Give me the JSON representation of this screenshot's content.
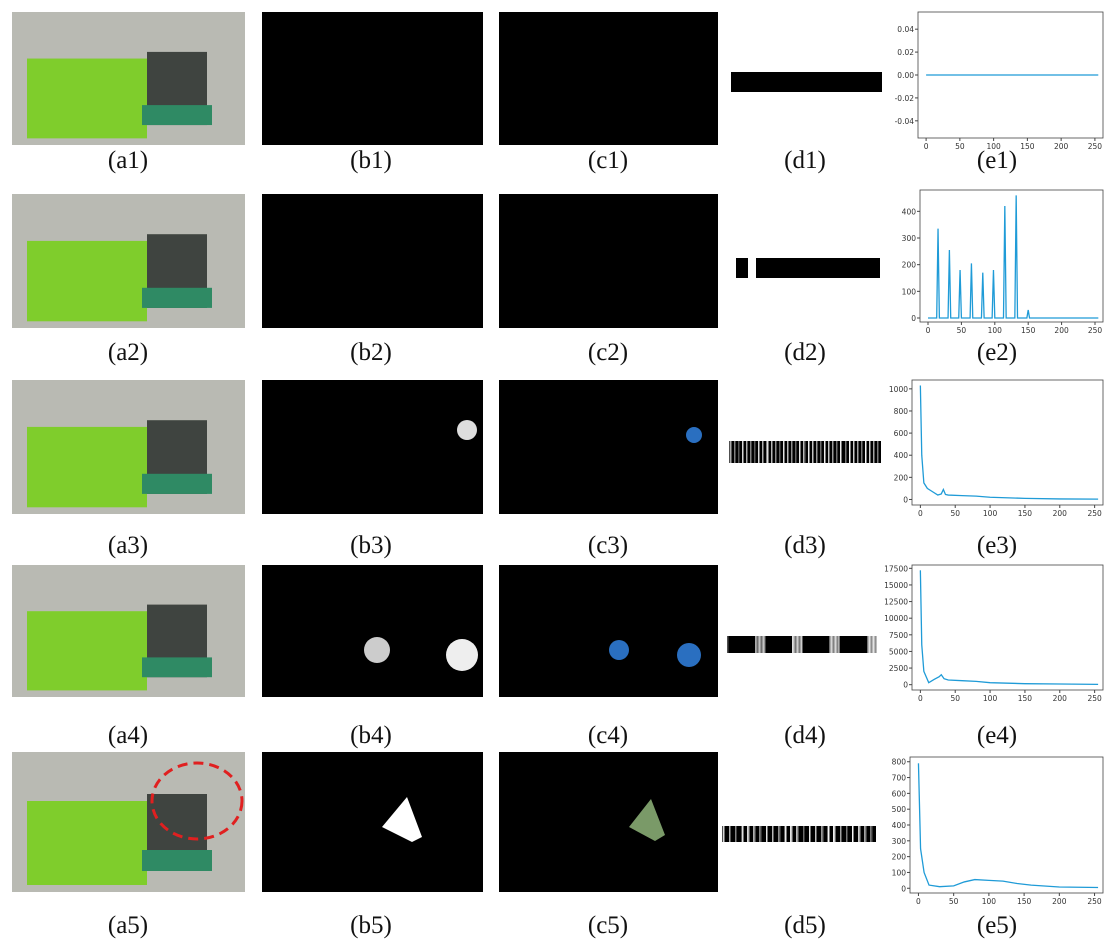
{
  "rows": [
    [
      "(a1)",
      "(b1)",
      "(c1)",
      "(d1)",
      "(e1)"
    ],
    [
      "(a2)",
      "(b2)",
      "(c2)",
      "(d2)",
      "(e2)"
    ],
    [
      "(a3)",
      "(b3)",
      "(c3)",
      "(d3)",
      "(e3)"
    ],
    [
      "(a4)",
      "(b4)",
      "(c4)",
      "(d4)",
      "(e4)"
    ],
    [
      "(a5)",
      "(b5)",
      "(c5)",
      "(d5)",
      "(e5)"
    ]
  ],
  "chart_data": [
    {
      "type": "line",
      "color": "#1f9bd7",
      "x": [
        0,
        255
      ],
      "values": [
        0,
        0
      ],
      "xlim": [
        -12,
        262
      ],
      "ylim": [
        -0.055,
        0.055
      ],
      "xticks": [
        0,
        50,
        100,
        150,
        200,
        250
      ],
      "yticks": [
        -0.04,
        -0.02,
        {
          "value": 0,
          "label": "0.00"
        },
        0.02,
        0.04
      ]
    },
    {
      "type": "line",
      "color": "#1f9bd7",
      "x": [
        0,
        13,
        15,
        17,
        30,
        32,
        34,
        46,
        48,
        50,
        63,
        65,
        67,
        80,
        82,
        84,
        96,
        98,
        100,
        113,
        115,
        117,
        130,
        132,
        134,
        148,
        150,
        152,
        255
      ],
      "values": [
        0,
        0,
        335,
        0,
        0,
        255,
        0,
        0,
        180,
        0,
        0,
        205,
        0,
        0,
        170,
        0,
        0,
        180,
        0,
        0,
        420,
        0,
        0,
        460,
        0,
        0,
        30,
        0,
        0
      ],
      "xlim": [
        -12,
        262
      ],
      "ylim": [
        -15,
        480
      ],
      "xticks": [
        0,
        50,
        100,
        150,
        200,
        250
      ],
      "yticks": [
        0,
        100,
        200,
        300,
        400
      ]
    },
    {
      "type": "line",
      "color": "#1f9bd7",
      "x": [
        0,
        2,
        5,
        10,
        15,
        25,
        30,
        33,
        36,
        40,
        60,
        80,
        100,
        150,
        200,
        255
      ],
      "values": [
        1030,
        400,
        150,
        100,
        80,
        40,
        50,
        90,
        45,
        40,
        35,
        30,
        20,
        10,
        5,
        3
      ],
      "xlim": [
        -12,
        262
      ],
      "ylim": [
        -50,
        1080
      ],
      "xticks": [
        0,
        50,
        100,
        150,
        200,
        250
      ],
      "yticks": [
        0,
        200,
        400,
        600,
        800,
        1000
      ]
    },
    {
      "type": "line",
      "color": "#1f9bd7",
      "x": [
        0,
        2,
        5,
        12,
        20,
        27,
        30,
        34,
        40,
        60,
        80,
        100,
        150,
        200,
        255
      ],
      "values": [
        17200,
        6000,
        2000,
        300,
        800,
        1200,
        1500,
        900,
        700,
        600,
        500,
        300,
        150,
        100,
        50
      ],
      "xlim": [
        -12,
        262
      ],
      "ylim": [
        -800,
        18000
      ],
      "xticks": [
        0,
        50,
        100,
        150,
        200,
        250
      ],
      "yticks": [
        0,
        2500,
        5000,
        7500,
        10000,
        12500,
        15000,
        17500
      ]
    },
    {
      "type": "line",
      "color": "#1f9bd7",
      "x": [
        0,
        3,
        8,
        15,
        30,
        50,
        65,
        80,
        100,
        120,
        140,
        160,
        200,
        255
      ],
      "values": [
        790,
        250,
        100,
        20,
        10,
        15,
        40,
        55,
        50,
        45,
        30,
        20,
        8,
        5
      ],
      "xlim": [
        -12,
        262
      ],
      "ylim": [
        -30,
        830
      ],
      "xticks": [
        0,
        50,
        100,
        150,
        200,
        250
      ],
      "yticks": [
        0,
        100,
        200,
        300,
        400,
        500,
        600,
        700,
        800
      ]
    }
  ]
}
